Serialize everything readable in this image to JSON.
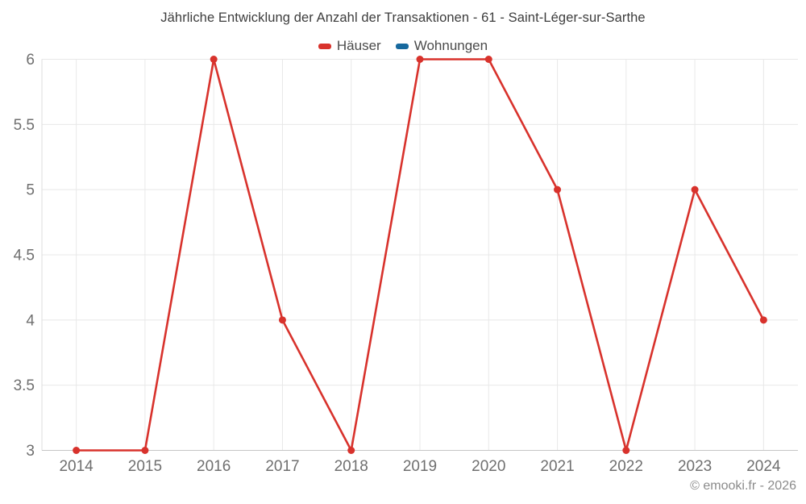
{
  "footer": {
    "copyright": "© emooki.fr - 2026"
  },
  "colors": {
    "hauser_red": "#d8322c",
    "wohnungen_blue": "#17699e",
    "grid_line": "#e8e8e8",
    "axis_line_bottom": "#c6c6c6",
    "axis_line_left": "#dcdcdc",
    "tick_text": "#6f6f6f",
    "title_text": "#3d3d3d"
  },
  "chart_data": {
    "type": "line",
    "title": "Jährliche Entwicklung der Anzahl der Transaktionen - 61 - Saint-Léger-sur-Sarthe",
    "categories": [
      "2014",
      "2015",
      "2016",
      "2017",
      "2018",
      "2019",
      "2020",
      "2021",
      "2022",
      "2023",
      "2024"
    ],
    "series": [
      {
        "name": "Häuser",
        "color": "#d8322c",
        "values": [
          3,
          3,
          6,
          4,
          3,
          6,
          6,
          5,
          3,
          5,
          4
        ]
      },
      {
        "name": "Wohnungen",
        "color": "#17699e",
        "values": []
      }
    ],
    "xlabel": "",
    "ylabel": "",
    "ylim": [
      3,
      6
    ],
    "yticks": [
      3,
      3.5,
      4,
      4.5,
      5,
      5.5,
      6
    ],
    "grid": true,
    "legend_position": "top"
  }
}
